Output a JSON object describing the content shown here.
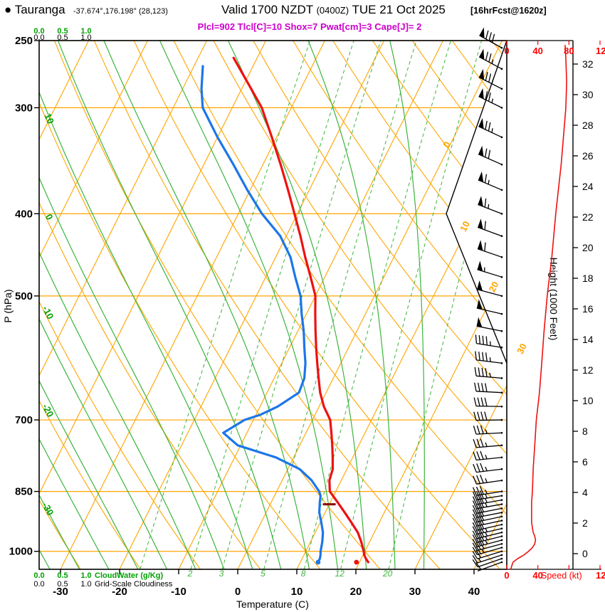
{
  "header": {
    "bullet": "●",
    "station": "Tauranga",
    "coords": "-37.674°,176.198° (28,123)",
    "valid_main": "Valid 1700 NZDT",
    "valid_zulu": "(0400Z)",
    "valid_date": "TUE 21 Oct 2025",
    "fcst": "[16hrFcst@1620z]"
  },
  "chart_data": {
    "type": "skewt",
    "params_line": "Plcl=902 Tlcl[C]=10 Shox=7 Pwat[cm]=3 Cape[J]= 2",
    "params": {
      "plcl_hpa": 902,
      "tlcl_c": 10,
      "showalter": 7,
      "pwat_cm": 3,
      "cape_j": 2
    },
    "axes": {
      "pressure_label": "P (hPa)",
      "pressure_ticks": [
        250,
        300,
        400,
        500,
        700,
        850,
        1000
      ],
      "temperature_label": "Temperature (C)",
      "temperature_ticks": [
        -30,
        -20,
        -10,
        0,
        10,
        20,
        30,
        40
      ],
      "height_label": "Height (1000 Feet)",
      "height_ticks_kft": [
        0,
        2,
        4,
        6,
        8,
        10,
        12,
        14,
        16,
        18,
        20,
        22,
        24,
        26,
        28,
        30,
        32
      ],
      "speed_label": "Speed (kt)",
      "speed_ticks": [
        0,
        40,
        80,
        120
      ],
      "pressure_range_hpa": [
        250,
        1050
      ],
      "temperature_range_c": [
        -35,
        45
      ]
    },
    "scales": {
      "values": [
        "0.0",
        "0.5",
        "1.0"
      ],
      "cloudwater_label": "CloudWater (g/Kg)",
      "gridscale_label": "Grid-Scale Cloudiness"
    },
    "background": {
      "isotherm_labels_c": [
        0,
        10,
        20,
        30
      ],
      "dry_adiabat_edge_labels_c": [
        10,
        0,
        -10,
        -20,
        -30
      ],
      "mixing_ratio_lines_gkg": [
        1,
        2,
        3,
        5,
        8,
        12,
        20
      ],
      "mixing_ratio_labels_gkg": [
        2,
        3,
        5,
        8,
        12,
        20
      ],
      "isotherms_c": {
        "min": -70,
        "max": 40,
        "step": 10
      },
      "dry_adiabats_c": {
        "min": -40,
        "max": 150,
        "step": 10
      },
      "moist_adiabats_c": {
        "min": -35,
        "max": 30,
        "step": 5
      }
    },
    "series": {
      "temperature_c": [
        [
          1030,
          21.5
        ],
        [
          1020,
          20.8
        ],
        [
          1010,
          20.2
        ],
        [
          1000,
          19.8
        ],
        [
          975,
          18.6
        ],
        [
          950,
          17.2
        ],
        [
          925,
          15.3
        ],
        [
          900,
          13.3
        ],
        [
          875,
          11.2
        ],
        [
          850,
          9.0
        ],
        [
          825,
          8.0
        ],
        [
          800,
          7.6
        ],
        [
          775,
          6.6
        ],
        [
          750,
          5.5
        ],
        [
          725,
          4.3
        ],
        [
          700,
          3.0
        ],
        [
          675,
          0.8
        ],
        [
          650,
          -1.0
        ],
        [
          625,
          -2.5
        ],
        [
          600,
          -4.0
        ],
        [
          575,
          -5.5
        ],
        [
          550,
          -7.0
        ],
        [
          525,
          -8.5
        ],
        [
          500,
          -10.0
        ],
        [
          475,
          -12.4
        ],
        [
          450,
          -15.0
        ],
        [
          425,
          -17.6
        ],
        [
          400,
          -20.5
        ],
        [
          375,
          -23.6
        ],
        [
          350,
          -27.0
        ],
        [
          325,
          -30.8
        ],
        [
          300,
          -35.0
        ],
        [
          285,
          -38.4
        ],
        [
          270,
          -42.0
        ],
        [
          262,
          -44.0
        ]
      ],
      "dewpoint_c": [
        [
          1030,
          13.0
        ],
        [
          1020,
          13.0
        ],
        [
          1010,
          12.8
        ],
        [
          1000,
          12.5
        ],
        [
          975,
          12.0
        ],
        [
          950,
          11.3
        ],
        [
          925,
          10.2
        ],
        [
          900,
          9.0
        ],
        [
          875,
          8.2
        ],
        [
          860,
          7.8
        ],
        [
          850,
          7.2
        ],
        [
          825,
          5.0
        ],
        [
          800,
          2.0
        ],
        [
          775,
          -3.0
        ],
        [
          750,
          -10.5
        ],
        [
          725,
          -14.0
        ],
        [
          700,
          -11.5
        ],
        [
          690,
          -9.2
        ],
        [
          675,
          -7.0
        ],
        [
          650,
          -4.6
        ],
        [
          625,
          -4.9
        ],
        [
          600,
          -6.0
        ],
        [
          575,
          -7.5
        ],
        [
          550,
          -9.0
        ],
        [
          525,
          -10.8
        ],
        [
          500,
          -12.5
        ],
        [
          475,
          -15.0
        ],
        [
          450,
          -17.5
        ],
        [
          425,
          -21.0
        ],
        [
          400,
          -26.0
        ],
        [
          375,
          -30.5
        ],
        [
          350,
          -35.0
        ],
        [
          325,
          -40.0
        ],
        [
          300,
          -45.0
        ],
        [
          285,
          -46.8
        ],
        [
          268,
          -48.5
        ]
      ],
      "surface_markers": {
        "temperature": [
          1030,
          19.5
        ],
        "dewpoint": [
          1030,
          13.0
        ]
      },
      "lcl_marker_hpa": 880,
      "wind_barbs": [
        [
          1030,
          8,
          250
        ],
        [
          1020,
          12,
          251
        ],
        [
          1010,
          16,
          252
        ],
        [
          1000,
          20,
          253
        ],
        [
          990,
          26,
          254
        ],
        [
          980,
          31,
          255
        ],
        [
          970,
          34,
          255
        ],
        [
          960,
          35,
          256
        ],
        [
          950,
          34,
          256
        ],
        [
          940,
          33,
          257
        ],
        [
          930,
          32,
          257
        ],
        [
          920,
          32,
          258
        ],
        [
          910,
          32,
          258
        ],
        [
          900,
          32,
          259
        ],
        [
          890,
          32,
          259
        ],
        [
          880,
          33,
          260
        ],
        [
          870,
          33,
          260
        ],
        [
          860,
          33,
          261
        ],
        [
          850,
          33,
          261
        ],
        [
          825,
          34,
          262
        ],
        [
          800,
          34,
          263
        ],
        [
          775,
          35,
          264
        ],
        [
          750,
          36,
          265
        ],
        [
          725,
          37,
          267
        ],
        [
          700,
          38,
          269
        ],
        [
          675,
          40,
          271
        ],
        [
          650,
          42,
          273
        ],
        [
          625,
          43,
          275
        ],
        [
          600,
          45,
          277
        ],
        [
          575,
          46,
          279
        ],
        [
          550,
          48,
          281
        ],
        [
          525,
          50,
          283
        ],
        [
          500,
          52,
          285
        ],
        [
          475,
          55,
          287
        ],
        [
          450,
          58,
          289
        ],
        [
          425,
          60,
          290
        ],
        [
          400,
          63,
          291
        ],
        [
          375,
          66,
          293
        ],
        [
          350,
          70,
          294
        ],
        [
          325,
          73,
          295
        ],
        [
          300,
          76,
          296
        ],
        [
          285,
          77,
          297
        ],
        [
          270,
          77,
          298
        ],
        [
          255,
          78,
          299
        ]
      ],
      "wind_speed_profile_kt": [
        [
          1050,
          5
        ],
        [
          1030,
          8
        ],
        [
          1020,
          14
        ],
        [
          1010,
          22
        ],
        [
          1000,
          28
        ],
        [
          990,
          33
        ],
        [
          980,
          36
        ],
        [
          970,
          37
        ],
        [
          960,
          36
        ],
        [
          950,
          34
        ],
        [
          925,
          32
        ],
        [
          900,
          32
        ],
        [
          875,
          32
        ],
        [
          850,
          33
        ],
        [
          800,
          34
        ],
        [
          750,
          36
        ],
        [
          700,
          38
        ],
        [
          650,
          42
        ],
        [
          600,
          45
        ],
        [
          550,
          48
        ],
        [
          500,
          52
        ],
        [
          450,
          58
        ],
        [
          400,
          63
        ],
        [
          350,
          70
        ],
        [
          300,
          76
        ],
        [
          280,
          77
        ],
        [
          262,
          76
        ],
        [
          253,
          75
        ]
      ]
    },
    "colors": {
      "orange": "#ffa500",
      "green": "#3cb43c",
      "scale_green": "#00a000",
      "temperature": "#ee1111",
      "dewpoint": "#1c76e8",
      "speed_curve": "#ee1111",
      "speed_axis": "#ff0000",
      "params": "#cc00cc",
      "lcl": "#8b0000",
      "barbs": "#000000"
    }
  }
}
